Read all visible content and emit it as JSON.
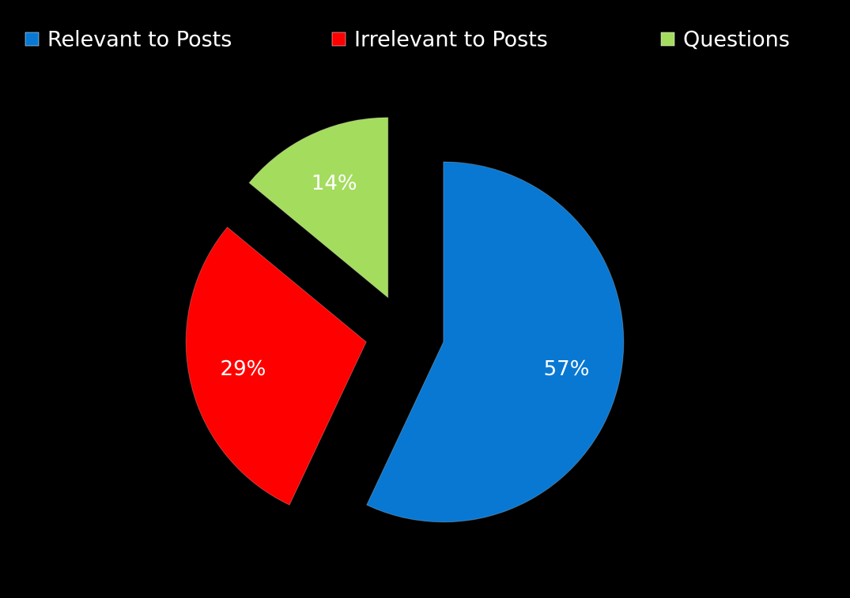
{
  "chart_data": {
    "type": "pie",
    "categories": [
      "Relevant to Posts",
      "Irrelevant to Posts",
      "Questions"
    ],
    "values": [
      57,
      29,
      14
    ],
    "value_labels": [
      "57%",
      "29%",
      "14%"
    ],
    "colors": [
      "#0878d2",
      "#ff0000",
      "#a4dc5e"
    ],
    "legend": "top",
    "exploded": true
  }
}
